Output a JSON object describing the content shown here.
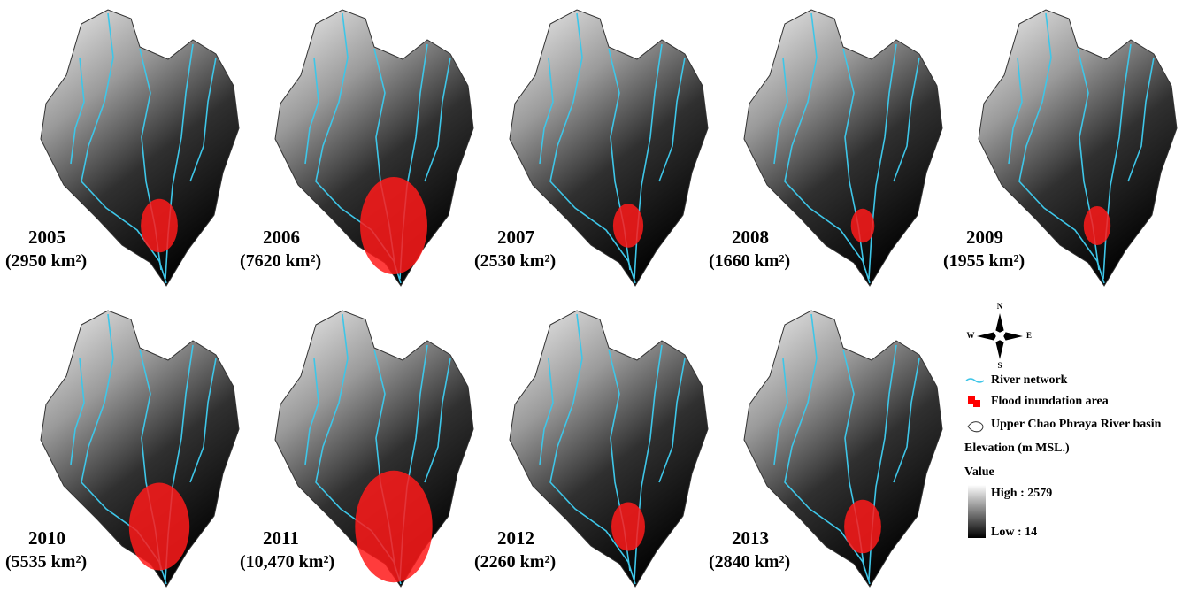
{
  "panels": [
    {
      "year": "2005",
      "area": "(2950 km²)"
    },
    {
      "year": "2006",
      "area": "(7620 km²)"
    },
    {
      "year": "2007",
      "area": "(2530 km²)"
    },
    {
      "year": "2008",
      "area": "(1660 km²)"
    },
    {
      "year": "2009",
      "area": "(1955 km²)"
    },
    {
      "year": "2010",
      "area": "(5535 km²)"
    },
    {
      "year": "2011",
      "area": "(10,470 km²)"
    },
    {
      "year": "2012",
      "area": "(2260 km²)"
    },
    {
      "year": "2013",
      "area": "(2840 km²)"
    }
  ],
  "legend": {
    "compass": {
      "north": "N",
      "south": "S",
      "east": "E",
      "west": "W"
    },
    "river": "River network",
    "flood": "Flood inundation area",
    "basin": "Upper Chao Phraya River basin",
    "elevation": "Elevation (m MSL.)",
    "value": "Value",
    "high": "High : 2579",
    "low": "Low : 14"
  }
}
